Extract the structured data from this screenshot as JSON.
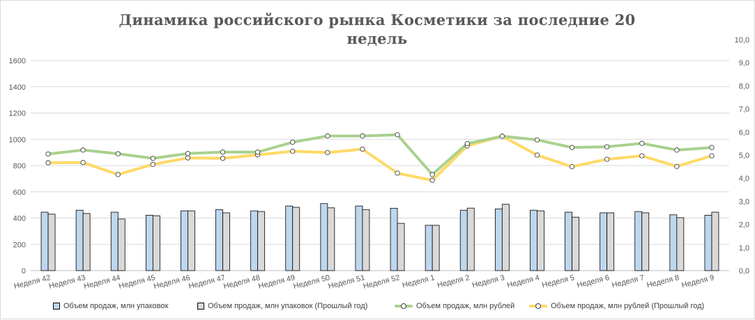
{
  "chart_data": {
    "type": "bar",
    "title": "Динамика российского рынка Косметики за последние 20 недель",
    "categories": [
      "Неделя 42",
      "Неделя 43",
      "Неделя 44",
      "Неделя 45",
      "Неделя 46",
      "Неделя 47",
      "Неделя 48",
      "Неделя 49",
      "Неделя 50",
      "Неделя 51",
      "Неделя 52",
      "Неделя 1",
      "Неделя 2",
      "Неделя 3",
      "Неделя 4",
      "Неделя 5",
      "Неделя 6",
      "Неделя 7",
      "Неделя 8",
      "Неделя 9"
    ],
    "y_left": {
      "min": 0,
      "max": 1600,
      "ticks": [
        "0",
        "200",
        "400",
        "600",
        "800",
        "1000",
        "1200",
        "1400",
        "1600"
      ]
    },
    "y_right": {
      "min": 0,
      "max": 10,
      "ticks": [
        "0,0",
        "1,0",
        "2,0",
        "3,0",
        "4,0",
        "5,0",
        "6,0",
        "7,0",
        "8,0",
        "9,0",
        "10,0"
      ]
    },
    "grid": true,
    "legend_position": "bottom",
    "series": [
      {
        "name": "Объем продаж, млн упаковок",
        "type": "bar",
        "axis": "left",
        "color": "#bdd7ee",
        "values": [
          445,
          460,
          445,
          422,
          455,
          465,
          455,
          492,
          510,
          492,
          475,
          345,
          460,
          470,
          460,
          445,
          440,
          450,
          425,
          422
        ]
      },
      {
        "name": "Объем продаж, млн упаковок (Прошлый год)",
        "type": "bar",
        "axis": "left",
        "color": "#d9d9d9",
        "values": [
          430,
          435,
          393,
          418,
          455,
          440,
          450,
          482,
          478,
          465,
          360,
          345,
          476,
          505,
          455,
          407,
          440,
          440,
          403,
          445
        ]
      },
      {
        "name": "Объем продаж, млн рублей",
        "type": "line",
        "axis": "right",
        "color": "#a9d18e",
        "values": [
          5.05,
          5.22,
          5.06,
          4.86,
          5.07,
          5.13,
          5.13,
          5.56,
          5.83,
          5.83,
          5.88,
          4.16,
          5.5,
          5.82,
          5.66,
          5.33,
          5.36,
          5.51,
          5.22,
          5.33
        ]
      },
      {
        "name": "Объем продаж, млн рублей (Прошлый год)",
        "type": "line",
        "axis": "right",
        "color": "#ffd966",
        "values": [
          4.67,
          4.68,
          4.16,
          4.6,
          4.88,
          4.86,
          5.01,
          5.17,
          5.11,
          5.26,
          4.22,
          3.91,
          5.4,
          5.82,
          5.0,
          4.5,
          4.82,
          4.97,
          4.51,
          4.97
        ]
      }
    ]
  }
}
